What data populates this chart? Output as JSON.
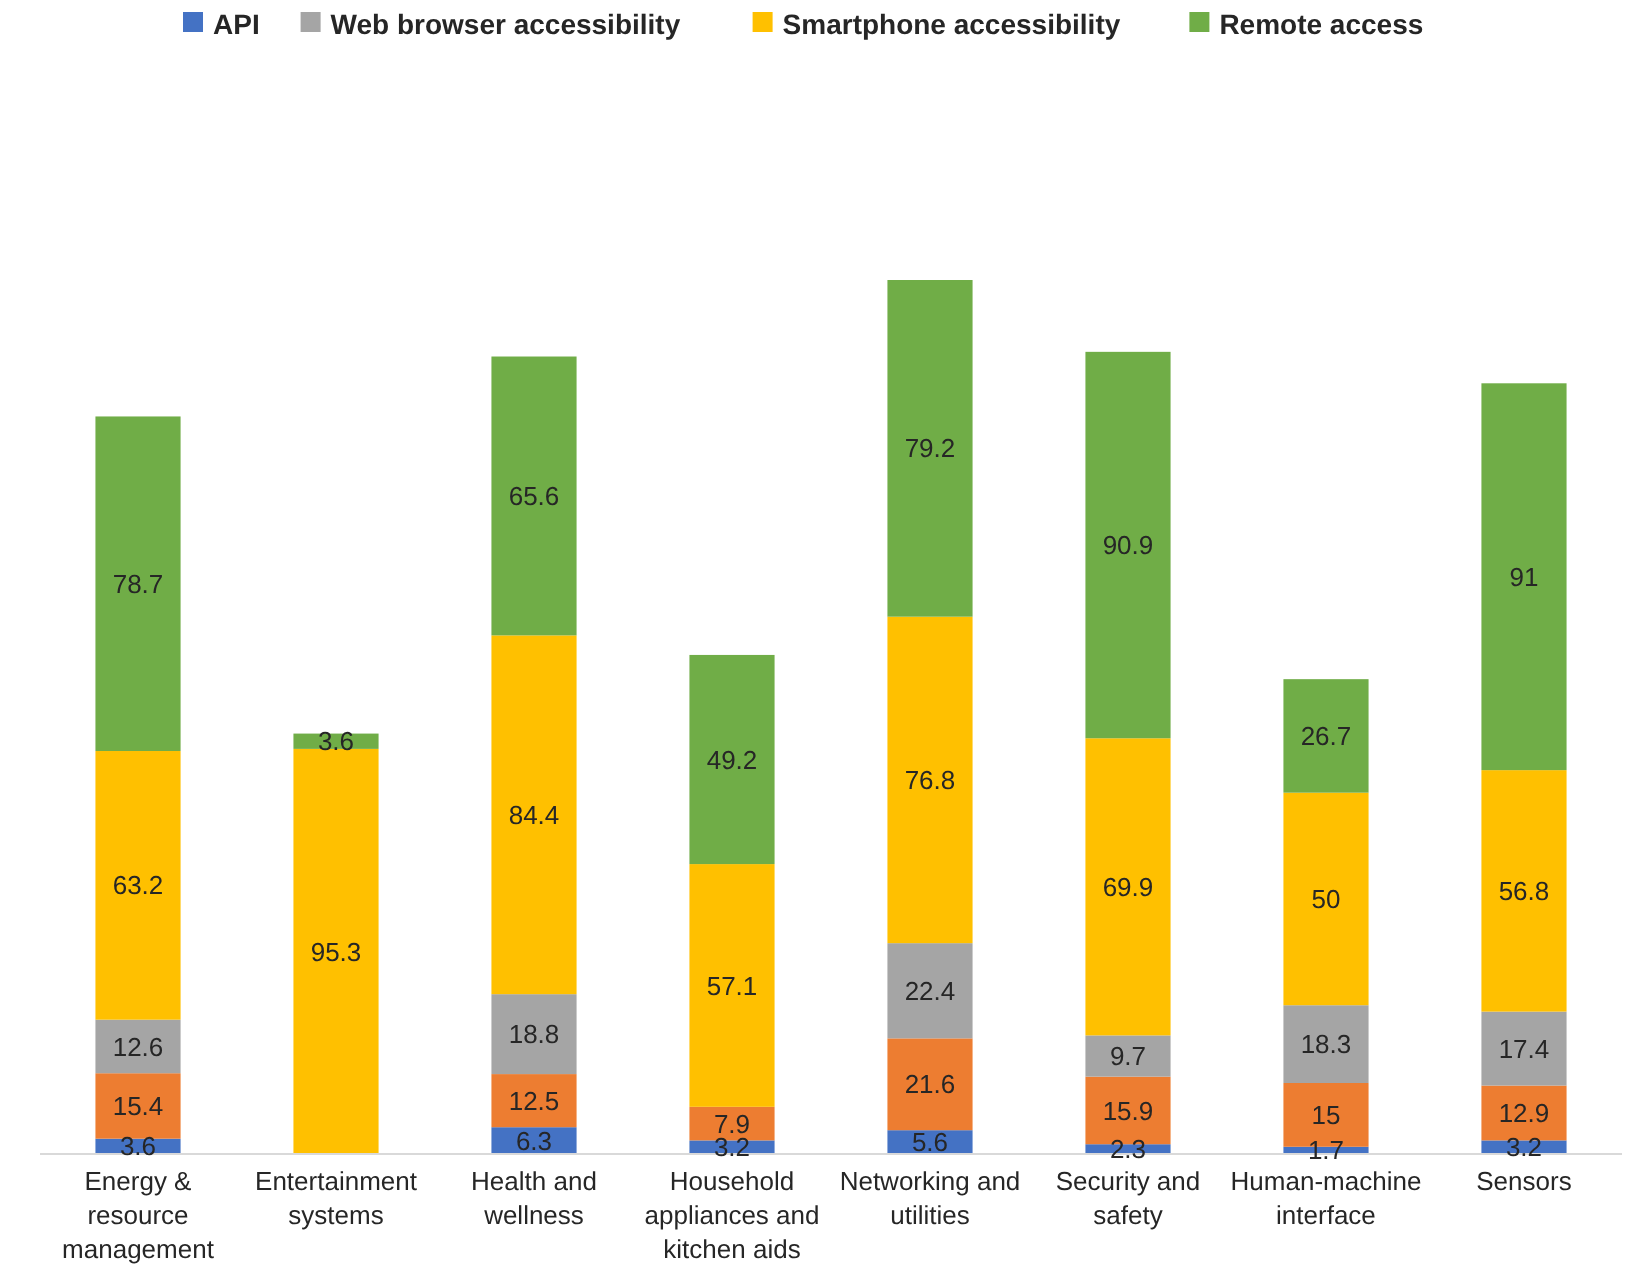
{
  "chart_data": {
    "type": "bar",
    "stacked": true,
    "data_labels": true,
    "legend": "top",
    "categories": [
      "Energy & resource management",
      "Entertainment systems",
      "Health and wellness",
      "Household appliances and kitchen aids",
      "Networking and utilities",
      "Security and safety",
      "Human-machine interface",
      "Sensors"
    ],
    "series": [
      {
        "name": "API",
        "color": "#4472c4",
        "values": [
          3.6,
          null,
          6.3,
          3.2,
          5.6,
          2.3,
          1.7,
          3.2
        ]
      },
      {
        "color": "#ed7d31",
        "values": [
          15.4,
          null,
          12.5,
          7.9,
          21.6,
          15.9,
          15,
          12.9
        ]
      },
      {
        "name": "Web browser accessibility",
        "color": "#a5a5a5",
        "values": [
          12.6,
          null,
          18.8,
          null,
          22.4,
          9.7,
          18.3,
          17.4
        ]
      },
      {
        "name": "Smartphone accessibility",
        "color": "#ffc000",
        "values": [
          63.2,
          95.3,
          84.4,
          57.1,
          76.8,
          69.9,
          50,
          56.8
        ]
      },
      {
        "name": "Remote access",
        "color": "#70ad47",
        "values": [
          78.7,
          3.6,
          65.6,
          49.2,
          79.2,
          90.9,
          26.7,
          91
        ]
      }
    ]
  }
}
